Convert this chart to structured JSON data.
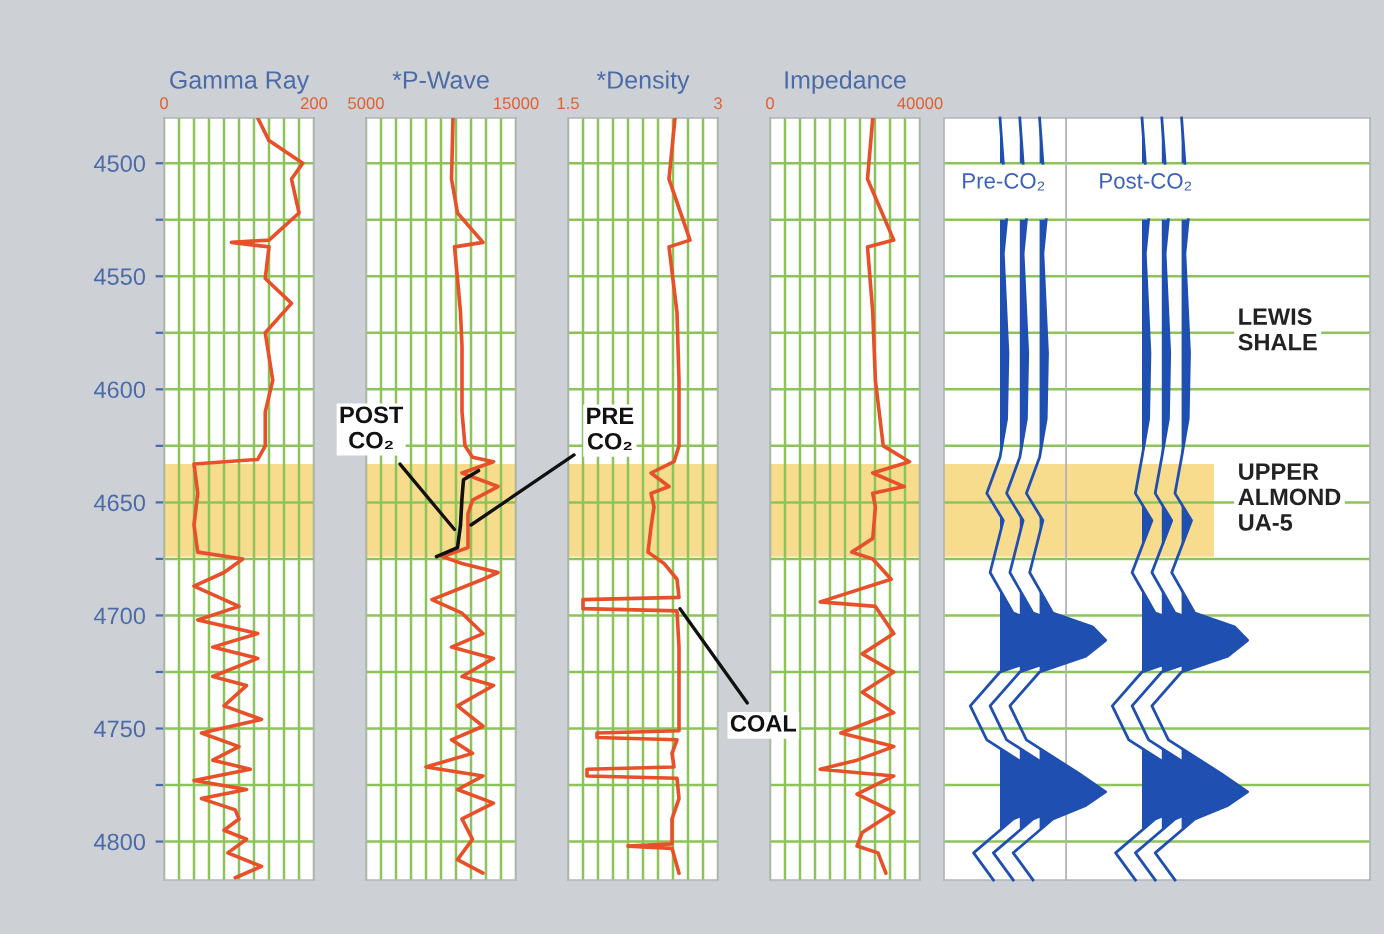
{
  "chart_data": [
    {
      "type": "line",
      "orientation": "horizontal",
      "xlabel": "Gamma Ray",
      "xlim": [
        0,
        200
      ],
      "xticks": [
        0,
        {
          "value": 20,
          "label": null
        },
        {
          "value": 40,
          "label": null
        },
        {
          "value": 60,
          "label": null
        },
        {
          "value": 80,
          "label": null
        },
        {
          "value": 100,
          "label": null
        },
        {
          "value": 120,
          "label": null
        },
        {
          "value": 140,
          "label": null
        },
        {
          "value": 160,
          "label": null
        },
        {
          "value": 180,
          "label": null
        },
        200
      ],
      "ylim": [
        4817,
        4480
      ],
      "yticks": [
        4500,
        {
          "value": 4525,
          "label": null
        },
        4550,
        {
          "value": 4575,
          "label": null
        },
        4600,
        {
          "value": 4625,
          "label": null
        },
        4650,
        {
          "value": 4675,
          "label": null
        },
        4700,
        {
          "value": 4725,
          "label": null
        },
        4750,
        {
          "value": 4775,
          "label": null
        },
        4800
      ],
      "grid": true,
      "bands": [
        {
          "axis": "y",
          "from": 4633,
          "to": 4674,
          "color": "#f8dc8e"
        }
      ],
      "series": [
        {
          "color": "#e8502a",
          "values": [
            125,
            140,
            185,
            170,
            180,
            140,
            90,
            140,
            135,
            170,
            135,
            145,
            135,
            135,
            125,
            40,
            45,
            40,
            45,
            105,
            80,
            40,
            100,
            45,
            125,
            65,
            125,
            65,
            110,
            80,
            130,
            50,
            100,
            65,
            115,
            40,
            110,
            50,
            95,
            100,
            80,
            110,
            85,
            130,
            95
          ],
          "x": [
            4480,
            4490,
            4500,
            4507,
            4522,
            4534,
            4535,
            4537,
            4551,
            4562,
            4575,
            4596,
            4610,
            4625,
            4631,
            4633,
            4646,
            4660,
            4672,
            4675,
            4681,
            4687,
            4696,
            4702,
            4708,
            4714,
            4719,
            4727,
            4731,
            4740,
            4746,
            4752,
            4758,
            4764,
            4768,
            4773,
            4777,
            4781,
            4786,
            4790,
            4795,
            4799,
            4805,
            4811,
            4816
          ]
        }
      ]
    },
    {
      "type": "line",
      "orientation": "horizontal",
      "xlabel": "*P-Wave",
      "xlim": [
        5000,
        15000
      ],
      "xticks": [
        5000,
        {
          "value": 6000,
          "label": null
        },
        {
          "value": 7000,
          "label": null
        },
        {
          "value": 8000,
          "label": null
        },
        {
          "value": 9000,
          "label": null
        },
        {
          "value": 10000,
          "label": null
        },
        {
          "value": 11000,
          "label": null
        },
        {
          "value": 12000,
          "label": null
        },
        {
          "value": 13000,
          "label": null
        },
        {
          "value": 14000,
          "label": null
        },
        15000
      ],
      "ylim": [
        4817,
        4480
      ],
      "yticks": [
        4500,
        {
          "value": 4525,
          "label": null
        },
        4550,
        {
          "value": 4575,
          "label": null
        },
        4600,
        {
          "value": 4625,
          "label": null
        },
        4650,
        {
          "value": 4675,
          "label": null
        },
        4700,
        {
          "value": 4725,
          "label": null
        },
        4750,
        {
          "value": 4775,
          "label": null
        },
        4800
      ],
      "grid": true,
      "tick_labels": "x",
      "bands": [
        {
          "axis": "y",
          "from": 4633,
          "to": 4674,
          "color": "#f8dc8e"
        }
      ],
      "annotations": [
        {
          "text": "POST\nCO₂",
          "x": 10900,
          "y": 4662
        },
        {
          "text": "PRE\nCO₂",
          "x": 12000,
          "y": 4660
        }
      ],
      "series": [
        {
          "color": "#e8502a",
          "values": [
            10800,
            10700,
            11100,
            12800,
            10900,
            11100,
            11300,
            11400,
            11400,
            11400,
            11600,
            12100,
            13500,
            11400,
            13800,
            12100,
            11800,
            11800,
            11800,
            10100,
            11400,
            13800,
            12800,
            9400,
            11400,
            12800,
            10700,
            13500,
            11400,
            13500,
            11100,
            12800,
            10700,
            12100,
            9000,
            12800,
            11100,
            13500,
            11400,
            12100,
            11100,
            12800
          ],
          "x": [
            4480,
            4507,
            4522,
            4535,
            4537,
            4551,
            4566,
            4581,
            4596,
            4610,
            4625,
            4630,
            4632,
            4637,
            4643,
            4649,
            4655,
            4664,
            4670,
            4674,
            4677,
            4681,
            4684,
            4693,
            4699,
            4708,
            4714,
            4719,
            4727,
            4731,
            4740,
            4749,
            4755,
            4761,
            4767,
            4771,
            4777,
            4783,
            4790,
            4799,
            4808,
            4814
          ]
        },
        {
          "color": "#111111",
          "values": [
            12500,
            11500,
            11400,
            11300,
            11100,
            9700
          ],
          "x": [
            4636,
            4640,
            4648,
            4660,
            4670,
            4674
          ]
        }
      ]
    },
    {
      "type": "line",
      "orientation": "horizontal",
      "xlabel": "*Density",
      "xlim": [
        1.5,
        3
      ],
      "xticks": [
        1.5,
        {
          "value": 1.65,
          "label": null
        },
        {
          "value": 1.8,
          "label": null
        },
        {
          "value": 1.95,
          "label": null
        },
        {
          "value": 2.1,
          "label": null
        },
        {
          "value": 2.25,
          "label": null
        },
        {
          "value": 2.4,
          "label": null
        },
        {
          "value": 2.55,
          "label": null
        },
        {
          "value": 2.7,
          "label": null
        },
        {
          "value": 2.85,
          "label": null
        },
        3
      ],
      "ylim": [
        4817,
        4480
      ],
      "yticks": [
        4500,
        {
          "value": 4525,
          "label": null
        },
        4550,
        {
          "value": 4575,
          "label": null
        },
        4600,
        {
          "value": 4625,
          "label": null
        },
        4650,
        {
          "value": 4675,
          "label": null
        },
        4700,
        {
          "value": 4725,
          "label": null
        },
        4750,
        {
          "value": 4775,
          "label": null
        },
        4800
      ],
      "grid": true,
      "tick_labels": "x",
      "bands": [
        {
          "axis": "y",
          "from": 4633,
          "to": 4674,
          "color": "#f8dc8e"
        }
      ],
      "annotations": [
        {
          "text": "COAL",
          "x": 2.62,
          "y": 4697
        }
      ],
      "series": [
        {
          "color": "#e8502a",
          "values": [
            2.57,
            2.51,
            2.72,
            2.51,
            2.59,
            2.61,
            2.61,
            2.56,
            2.33,
            2.51,
            2.33,
            2.36,
            2.33,
            2.3,
            2.46,
            2.59,
            2.61,
            1.65,
            1.65,
            2.59,
            2.61,
            2.61,
            2.61,
            1.79,
            1.79,
            2.59,
            2.54,
            2.56,
            1.69,
            1.69,
            2.59,
            2.61,
            2.54,
            2.54,
            2.1,
            2.54,
            2.61
          ],
          "x": [
            4480,
            4507,
            4534,
            4537,
            4566,
            4596,
            4625,
            4632,
            4637,
            4643,
            4646,
            4652,
            4661,
            4672,
            4677,
            4684,
            4692,
            4693,
            4697,
            4698,
            4714,
            4743,
            4751,
            4752,
            4754,
            4755,
            4761,
            4767,
            4768,
            4771,
            4772,
            4781,
            4790,
            4801,
            4802,
            4803,
            4814
          ]
        }
      ]
    },
    {
      "type": "line",
      "orientation": "horizontal",
      "xlabel": "Impedance",
      "xlim": [
        0,
        40000
      ],
      "xticks": [
        0,
        {
          "value": 4000,
          "label": null
        },
        {
          "value": 8000,
          "label": null
        },
        {
          "value": 12000,
          "label": null
        },
        {
          "value": 16000,
          "label": null
        },
        {
          "value": 20000,
          "label": null
        },
        {
          "value": 24000,
          "label": null
        },
        {
          "value": 28000,
          "label": null
        },
        {
          "value": 32000,
          "label": null
        },
        {
          "value": 36000,
          "label": null
        },
        40000
      ],
      "ylim": [
        4817,
        4480
      ],
      "yticks": [
        4500,
        {
          "value": 4525,
          "label": null
        },
        4550,
        {
          "value": 4575,
          "label": null
        },
        4600,
        {
          "value": 4625,
          "label": null
        },
        4650,
        {
          "value": 4675,
          "label": null
        },
        4700,
        {
          "value": 4725,
          "label": null
        },
        4750,
        {
          "value": 4775,
          "label": null
        },
        4800
      ],
      "grid": true,
      "tick_labels": "x",
      "bands": [
        {
          "axis": "y",
          "from": 4633,
          "to": 4674,
          "color": "#f8dc8e"
        }
      ],
      "series": [
        {
          "color": "#e8502a",
          "values": [
            27400,
            26000,
            33000,
            26000,
            27400,
            28100,
            30200,
            37200,
            27400,
            35800,
            27400,
            28100,
            27400,
            21800,
            27400,
            32300,
            13400,
            28100,
            33000,
            24600,
            33000,
            24600,
            33000,
            18900,
            33000,
            23200,
            13400,
            33000,
            23200,
            33000,
            24600,
            23200,
            28800,
            30900
          ],
          "x": [
            4480,
            4507,
            4534,
            4537,
            4566,
            4596,
            4625,
            4632,
            4637,
            4643,
            4646,
            4652,
            4666,
            4672,
            4675,
            4684,
            4694,
            4696,
            4708,
            4717,
            4725,
            4734,
            4743,
            4752,
            4758,
            4764,
            4768,
            4771,
            4779,
            4787,
            4796,
            4802,
            4805,
            4814
          ]
        }
      ]
    },
    {
      "type": "other",
      "title": "Pre-CO₂"
    },
    {
      "type": "other",
      "title": "Post-CO₂",
      "annotations": [
        "LEWIS\nSHALE",
        "UPPER\nALMOND\nUA-5"
      ]
    }
  ]
}
